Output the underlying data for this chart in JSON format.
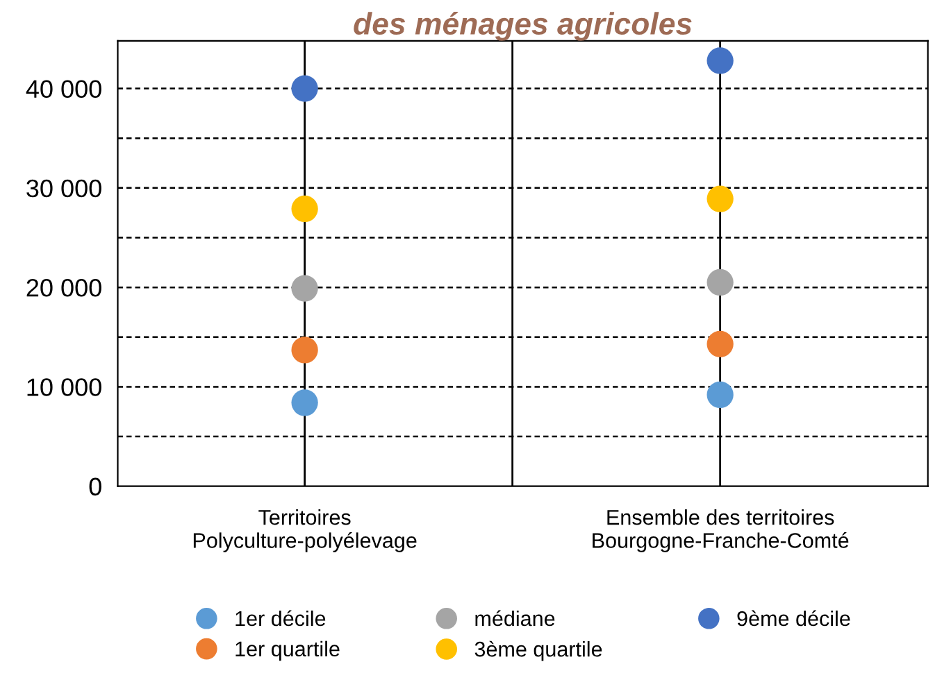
{
  "chart_data": {
    "type": "scatter",
    "title": "des ménages agricoles",
    "categories": [
      "Territoires\nPolyculture-polyélevage",
      "Ensemble des territoires\nBourgogne-Franche-Comté"
    ],
    "series": [
      {
        "name": "1er décile",
        "color": "#5b9bd5",
        "values": [
          8400,
          9200
        ]
      },
      {
        "name": "1er quartile",
        "color": "#ed7d31",
        "values": [
          13700,
          14300
        ]
      },
      {
        "name": "médiane",
        "color": "#a5a5a5",
        "values": [
          19900,
          20500
        ]
      },
      {
        "name": "3ème quartile",
        "color": "#ffc000",
        "values": [
          27900,
          28900
        ]
      },
      {
        "name": "9ème décile",
        "color": "#4472c4",
        "values": [
          40000,
          42800
        ]
      }
    ],
    "ylim": [
      0,
      44800
    ],
    "yticks": [
      {
        "value": 0,
        "label": "0"
      },
      {
        "value": 5000,
        "label": null
      },
      {
        "value": 10000,
        "label": "10 000"
      },
      {
        "value": 15000,
        "label": null
      },
      {
        "value": 20000,
        "label": "20 000"
      },
      {
        "value": 25000,
        "label": null
      },
      {
        "value": 30000,
        "label": "30 000"
      },
      {
        "value": 35000,
        "label": null
      },
      {
        "value": 40000,
        "label": "40 000"
      }
    ],
    "grid": true,
    "legend": "bottom",
    "marker": "circle"
  }
}
